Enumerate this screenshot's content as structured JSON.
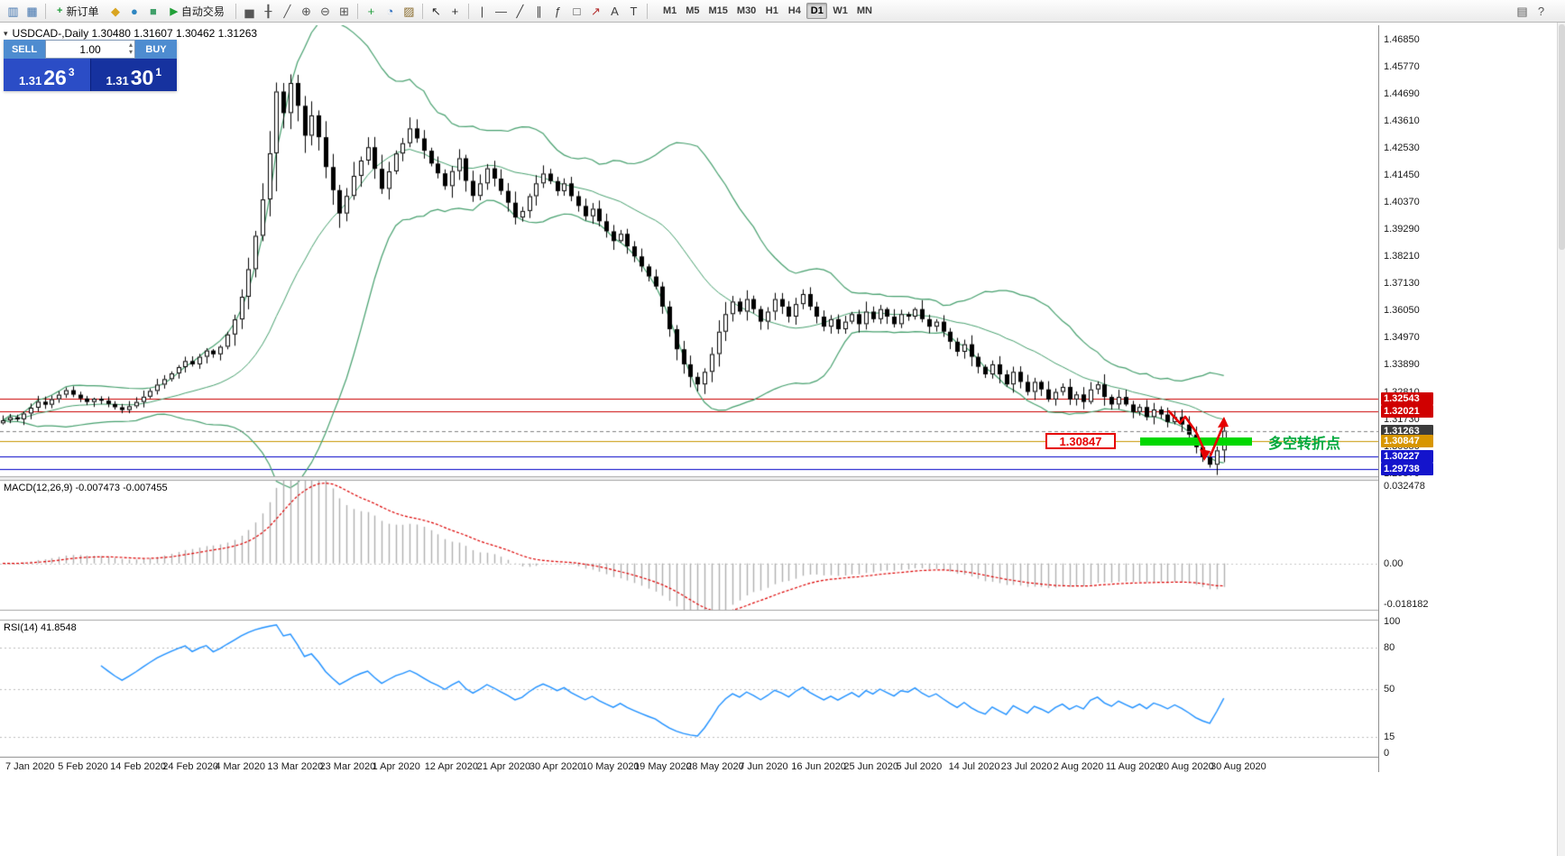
{
  "toolbar": {
    "items": [
      {
        "name": "new-chart-icon",
        "glyph": "▥",
        "color": "#3f72ad"
      },
      {
        "name": "profiles-icon",
        "glyph": "▦",
        "color": "#3f72ad"
      },
      {
        "sep": true
      },
      {
        "name": "new-order-button",
        "label": "新订单",
        "icon": "+",
        "icon_color": "#1f9d3a",
        "icon_name": "new-order-icon"
      },
      {
        "name": "metaeditor-icon",
        "glyph": "◆",
        "color": "#d9a420"
      },
      {
        "name": "market-watch-icon",
        "glyph": "●",
        "color": "#2e86c1"
      },
      {
        "name": "navigator-icon",
        "glyph": "■",
        "color": "#41a06a"
      },
      {
        "name": "autotrading-button",
        "label": "自动交易",
        "icon": "▶",
        "icon_color": "#21a038",
        "icon_name": "autotrading-icon"
      },
      {
        "sep": true
      },
      {
        "name": "bar-chart-icon",
        "glyph": "▅",
        "color": "#565656"
      },
      {
        "name": "candlestick-chart-icon",
        "glyph": "╂",
        "color": "#565656"
      },
      {
        "name": "line-chart-icon",
        "glyph": "╱",
        "color": "#565656"
      },
      {
        "name": "zoom-in-icon",
        "glyph": "⊕",
        "color": "#565656"
      },
      {
        "name": "zoom-out-icon",
        "glyph": "⊖",
        "color": "#565656"
      },
      {
        "name": "tile-windows-icon",
        "glyph": "⊞",
        "color": "#565656"
      },
      {
        "sep": true
      },
      {
        "name": "indicators-icon",
        "glyph": "+",
        "color": "#1f9d3a"
      },
      {
        "name": "periods-icon",
        "glyph": "◔",
        "color": "#2e6fc1"
      },
      {
        "name": "templates-icon",
        "glyph": "▨",
        "color": "#8a6d2f"
      },
      {
        "sep": true
      },
      {
        "name": "cursor-icon",
        "glyph": "↖",
        "color": "#2c2c2c"
      },
      {
        "name": "crosshair-icon",
        "glyph": "+",
        "color": "#2c2c2c"
      },
      {
        "sep": true
      },
      {
        "name": "vertical-line-icon",
        "glyph": "|",
        "color": "#3e3e3e"
      },
      {
        "name": "horizontal-line-icon",
        "glyph": "—",
        "color": "#3e3e3e"
      },
      {
        "name": "trendline-icon",
        "glyph": "╱",
        "color": "#3e3e3e"
      },
      {
        "name": "channel-icon",
        "glyph": "∥",
        "color": "#3e3e3e"
      },
      {
        "name": "fibonacci-icon",
        "glyph": "ƒ",
        "color": "#3e3e3e"
      },
      {
        "name": "shapes-icon",
        "glyph": "□",
        "color": "#3e3e3e"
      },
      {
        "name": "arrows-icon",
        "glyph": "↗",
        "color": "#b43030"
      },
      {
        "name": "text-icon",
        "glyph": "A",
        "color": "#3e3e3e"
      },
      {
        "name": "label-icon",
        "glyph": "T",
        "color": "#3e3e3e"
      },
      {
        "sep": true
      }
    ],
    "timeframes": [
      "M1",
      "M5",
      "M15",
      "M30",
      "H1",
      "H4",
      "D1",
      "W1",
      "MN"
    ],
    "active_timeframe": "D1",
    "right_items": [
      {
        "name": "layout-icon",
        "glyph": "▤",
        "color": "#565656"
      },
      {
        "name": "help-icon",
        "glyph": "?",
        "color": "#565656"
      }
    ]
  },
  "symbol_header": {
    "text": "USDCAD-,Daily  1.30480 1.31607 1.30462 1.31263"
  },
  "one_click": {
    "collapse_icon": "▾",
    "sell_button": "SELL",
    "buy_button": "BUY",
    "volume": "1.00",
    "volume_up_icon": "▴",
    "volume_down_icon": "▾",
    "sell_quote": {
      "prefix": "1.31",
      "big": "26",
      "sup": "3"
    },
    "buy_quote": {
      "prefix": "1.31",
      "big": "30",
      "sup": "1"
    },
    "colors": {
      "button_bg": "#4e8cd0",
      "sell_panel_bg": "#2b4dc6",
      "buy_panel_bg": "#16329f"
    }
  },
  "price_scale": {
    "ticks": [
      "1.46850",
      "1.45770",
      "1.44690",
      "1.43610",
      "1.42530",
      "1.41450",
      "1.40370",
      "1.39290",
      "1.38210",
      "1.37130",
      "1.36050",
      "1.34970",
      "1.33890",
      "1.32810",
      "1.31730",
      "1.30650",
      "1.29570"
    ],
    "badges": [
      {
        "label": "1.32543",
        "bg": "#d00000"
      },
      {
        "label": "1.32021",
        "bg": "#d00000"
      },
      {
        "label": "1.31263",
        "bg": "#3c3c3c"
      },
      {
        "label": "1.30847",
        "bg": "#d89600"
      },
      {
        "label": "1.30227",
        "bg": "#1414cc"
      },
      {
        "label": "1.29738",
        "bg": "#1414cc"
      }
    ]
  },
  "macd_panel": {
    "label": "MACD(12,26,9) -0.007473 -0.007455",
    "scale": [
      {
        "label": "0.032478",
        "value": 0.0325
      },
      {
        "label": "0.00",
        "value": 0
      },
      {
        "label": "-0.018182",
        "value": -0.0182
      }
    ]
  },
  "rsi_panel": {
    "label": "RSI(14) 41.8548",
    "scale": [
      {
        "label": "100",
        "value": 100
      },
      {
        "label": "80",
        "value": 80
      },
      {
        "label": "50",
        "value": 50
      },
      {
        "label": "15",
        "value": 15
      },
      {
        "label": "0",
        "value": 0
      }
    ]
  },
  "annotations": {
    "price_box_label": "1.30847",
    "box_color": "#e60000",
    "pivot_label": "多空转折点",
    "pivot_color": "#00a83c",
    "highlight_color": "#00d800",
    "arrow_color": "#e60000"
  },
  "chart_data": {
    "type": "candlestick",
    "symbol": "USDCAD",
    "period": "Daily",
    "ohlc_display": {
      "open": "1.30480",
      "high": "1.31607",
      "low": "1.30462",
      "close": "1.31263"
    },
    "price_axis": {
      "top": 1.4742,
      "bottom": 1.2945
    },
    "candle_colors": {
      "up_fill": "#ffffff",
      "down_fill": "#000000",
      "outline": "#000000"
    },
    "closes": [
      1.3168,
      1.318,
      1.3172,
      1.3195,
      1.3218,
      1.3242,
      1.323,
      1.3252,
      1.327,
      1.3288,
      1.327,
      1.3255,
      1.3241,
      1.3254,
      1.3246,
      1.3233,
      1.322,
      1.3209,
      1.3224,
      1.3241,
      1.3262,
      1.3285,
      1.331,
      1.3332,
      1.3355,
      1.338,
      1.3404,
      1.3391,
      1.3421,
      1.3446,
      1.3431,
      1.3461,
      1.351,
      1.357,
      1.366,
      1.377,
      1.3903,
      1.4048,
      1.4232,
      1.4478,
      1.4392,
      1.4512,
      1.4421,
      1.4302,
      1.4383,
      1.4296,
      1.4177,
      1.4085,
      1.3992,
      1.4062,
      1.4142,
      1.4203,
      1.4256,
      1.417,
      1.409,
      1.416,
      1.4231,
      1.4272,
      1.4331,
      1.4291,
      1.4242,
      1.4191,
      1.4152,
      1.4101,
      1.4161,
      1.4212,
      1.4122,
      1.4062,
      1.4112,
      1.4172,
      1.4131,
      1.4082,
      1.4035,
      1.3976,
      1.4002,
      1.4061,
      1.4112,
      1.4151,
      1.4121,
      1.4081,
      1.4112,
      1.4061,
      1.4022,
      1.3981,
      1.4011,
      1.3961,
      1.3921,
      1.3882,
      1.3911,
      1.3861,
      1.3821,
      1.3781,
      1.3741,
      1.3701,
      1.3621,
      1.3531,
      1.3451,
      1.3391,
      1.3341,
      1.3311,
      1.3361,
      1.3432,
      1.3521,
      1.3591,
      1.3641,
      1.3601,
      1.3651,
      1.3611,
      1.3561,
      1.3601,
      1.3651,
      1.3621,
      1.3581,
      1.3631,
      1.3671,
      1.3621,
      1.3581,
      1.3541,
      1.3571,
      1.3531,
      1.3561,
      1.3591,
      1.3551,
      1.3601,
      1.3571,
      1.3611,
      1.3581,
      1.3551,
      1.3591,
      1.3581,
      1.3611,
      1.3571,
      1.3541,
      1.3561,
      1.3521,
      1.3481,
      1.3441,
      1.3471,
      1.3421,
      1.3381,
      1.3351,
      1.3391,
      1.3351,
      1.3311,
      1.3361,
      1.3321,
      1.3281,
      1.3321,
      1.3291,
      1.3251,
      1.3281,
      1.3301,
      1.3251,
      1.3271,
      1.3241,
      1.3291,
      1.3311,
      1.3261,
      1.3231,
      1.3261,
      1.3231,
      1.3201,
      1.3221,
      1.3181,
      1.3211,
      1.3191,
      1.3161,
      1.3181,
      1.3151,
      1.3111,
      1.3061,
      1.3021,
      1.2991,
      1.3048,
      1.31263
    ],
    "hlines": [
      {
        "price": 1.32543,
        "color": "#cc0000"
      },
      {
        "price": 1.32021,
        "color": "#cc0000"
      },
      {
        "price": 1.31263,
        "color": "#808080",
        "dash": true
      },
      {
        "price": 1.30847,
        "color": "#c89600"
      },
      {
        "price": 1.30227,
        "color": "#0000c8"
      },
      {
        "price": 1.29738,
        "color": "#0000c8"
      }
    ],
    "bollinger": {
      "period": 20,
      "deviation": 2,
      "color": "#46a06e"
    },
    "macd": {
      "fast": 12,
      "slow": 26,
      "signal_period": 9,
      "main_value": -0.007473,
      "signal_value": -0.007455,
      "histogram_color": "#b0b0b0",
      "signal_color": "#dd0000",
      "axis": [
        -0.0182,
        0.0325
      ]
    },
    "rsi": {
      "period": 14,
      "value": 41.8548,
      "color": "#1E90FF",
      "levels": [
        80,
        50,
        15
      ],
      "axis": [
        0,
        100
      ]
    },
    "date_labels": [
      "7 Jan 2020",
      "5 Feb 2020",
      "14 Feb 2020",
      "24 Feb 2020",
      "4 Mar 2020",
      "13 Mar 2020",
      "23 Mar 2020",
      "1 Apr 2020",
      "12 Apr 2020",
      "21 Apr 2020",
      "30 Apr 2020",
      "10 May 2020",
      "19 May 2020",
      "28 May 2020",
      "7 Jun 2020",
      "16 Jun 2020",
      "25 Jun 2020",
      "5 Jul 2020",
      "14 Jul 2020",
      "23 Jul 2020",
      "2 Aug 2020",
      "11 Aug 2020",
      "20 Aug 2020",
      "30 Aug 2020"
    ]
  }
}
